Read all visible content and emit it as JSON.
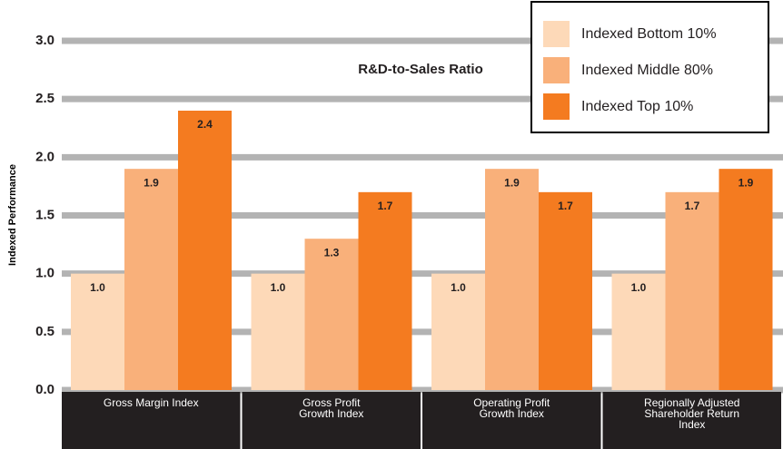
{
  "chart_data": {
    "type": "bar",
    "title": "R&D-to-Sales Ratio",
    "y_label": "Indexed Performance",
    "categories": [
      "Gross Margin Index",
      "Gross Profit Growth Index",
      "Operating Profit Growth Index",
      "Regionally Adjusted Shareholder Return Index"
    ],
    "series": [
      {
        "name": "Indexed Bottom 10%",
        "color": "#fdd9b8",
        "values": [
          1.0,
          1.0,
          1.0,
          1.0
        ],
        "value_labels": [
          "1.0",
          "1.0",
          "1.0",
          "1.0"
        ]
      },
      {
        "name": "Indexed Middle 80%",
        "color": "#f9b07a",
        "values": [
          1.9,
          1.3,
          1.9,
          1.7
        ]
      },
      {
        "name": "Indexed Top 10%",
        "color": "#f47b20",
        "values": [
          2.4,
          1.7,
          1.7,
          1.9
        ]
      }
    ],
    "ylim": [
      0,
      3
    ],
    "yticks": [
      {
        "value": 0,
        "label": "0.0"
      },
      0.5,
      {
        "value": 1,
        "label": "1.0"
      },
      1.5,
      {
        "value": 2,
        "label": "2.0"
      },
      2.5,
      {
        "value": 3,
        "label": "3.0"
      }
    ],
    "grid": true,
    "legend": "upper right"
  }
}
